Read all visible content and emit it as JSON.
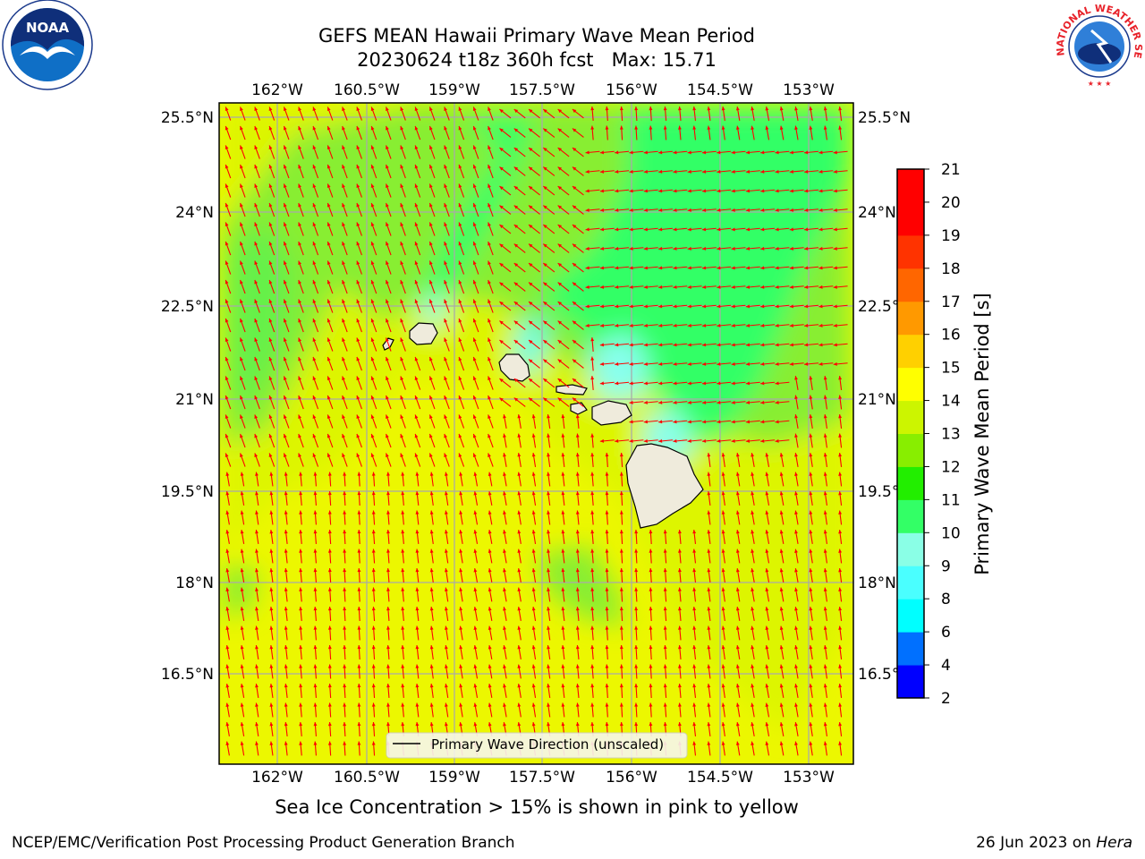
{
  "header": {
    "title_line1": "GEFS MEAN Hawaii Primary Wave Mean Period",
    "title_line2": "20230624 t18z 360h fcst   Max: 15.71"
  },
  "logos": {
    "left": {
      "icon": "noaa-logo-icon",
      "text": "NOAA"
    },
    "right": {
      "icon": "nws-logo-icon",
      "text": "NATIONAL WEATHER SERVICE"
    }
  },
  "map": {
    "lon_ticks": [
      "162°W",
      "160.5°W",
      "159°W",
      "157.5°W",
      "156°W",
      "154.5°W",
      "153°W"
    ],
    "lat_ticks": [
      "25.5°N",
      "24°N",
      "22.5°N",
      "21°N",
      "19.5°N",
      "18°N",
      "16.5°N"
    ],
    "legend": "Primary Wave Direction (unscaled)",
    "vector_color": "#ff0000",
    "land_color": "#efebdc"
  },
  "chart_data": {
    "type": "heatmap",
    "title": "GEFS MEAN Hawaii Primary Wave Mean Period",
    "max": 15.71,
    "colorbar": {
      "label": "Primary Wave Mean Period [s]",
      "ticks": [
        2,
        4,
        6,
        8,
        9,
        10,
        11,
        12,
        13,
        14,
        15,
        16,
        17,
        18,
        19,
        20,
        21
      ],
      "colors": [
        "#0000ff",
        "#0070ff",
        "#00ffff",
        "#4affff",
        "#8affe6",
        "#33ff66",
        "#22ee00",
        "#88ee00",
        "#ccf500",
        "#ffff00",
        "#ffd000",
        "#ff9900",
        "#ff6600",
        "#ff3300",
        "#ff0000"
      ]
    }
  },
  "footer": {
    "subtitle": "Sea Ice Concentration > 15% is shown in pink to yellow",
    "left": "NCEP/EMC/Verification Post Processing Product Generation Branch",
    "date": "26 Jun 2023 on",
    "machine": "Hera"
  }
}
